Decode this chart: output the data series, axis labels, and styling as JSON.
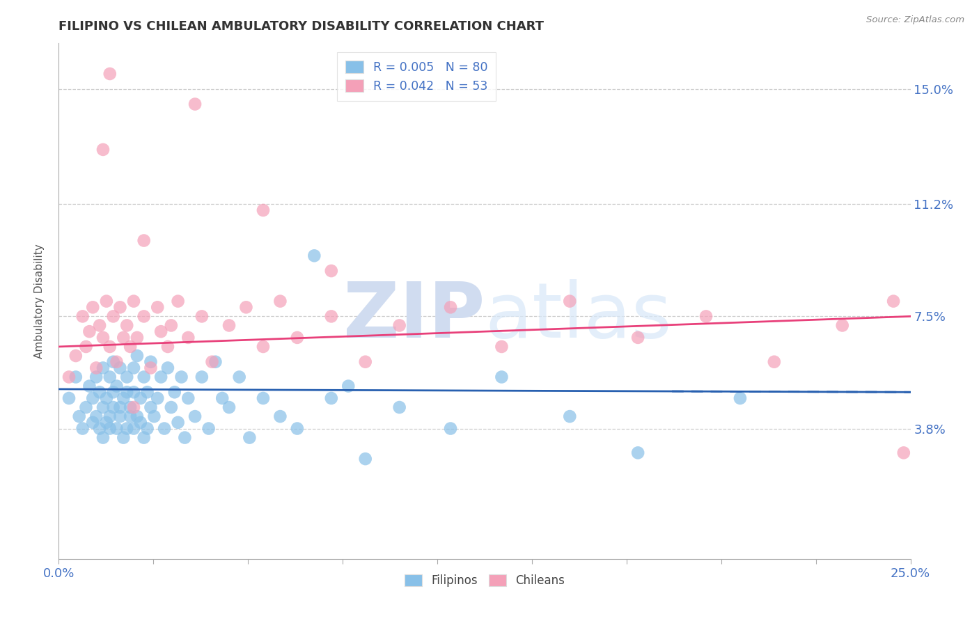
{
  "title": "FILIPINO VS CHILEAN AMBULATORY DISABILITY CORRELATION CHART",
  "source": "Source: ZipAtlas.com",
  "ylabel": "Ambulatory Disability",
  "x_min": 0.0,
  "x_max": 0.25,
  "y_min": -0.005,
  "y_max": 0.165,
  "y_ticks": [
    0.038,
    0.075,
    0.112,
    0.15
  ],
  "y_tick_labels": [
    "3.8%",
    "7.5%",
    "11.2%",
    "15.0%"
  ],
  "legend_R_filipino": "R = 0.005",
  "legend_N_filipino": "N = 80",
  "legend_R_chilean": "R = 0.042",
  "legend_N_chilean": "N = 53",
  "color_filipino": "#88C0E8",
  "color_chilean": "#F4A0B8",
  "color_trendline_filipino": "#2860B0",
  "color_trendline_chilean": "#E8407A",
  "color_axis_labels": "#4472C4",
  "filipino_x": [
    0.003,
    0.005,
    0.006,
    0.007,
    0.008,
    0.009,
    0.01,
    0.01,
    0.011,
    0.011,
    0.012,
    0.012,
    0.013,
    0.013,
    0.013,
    0.014,
    0.014,
    0.015,
    0.015,
    0.015,
    0.016,
    0.016,
    0.016,
    0.017,
    0.017,
    0.018,
    0.018,
    0.018,
    0.019,
    0.019,
    0.02,
    0.02,
    0.02,
    0.021,
    0.021,
    0.022,
    0.022,
    0.022,
    0.023,
    0.023,
    0.024,
    0.024,
    0.025,
    0.025,
    0.026,
    0.026,
    0.027,
    0.027,
    0.028,
    0.029,
    0.03,
    0.031,
    0.032,
    0.033,
    0.034,
    0.035,
    0.036,
    0.037,
    0.038,
    0.04,
    0.042,
    0.044,
    0.046,
    0.048,
    0.05,
    0.053,
    0.056,
    0.06,
    0.065,
    0.07,
    0.075,
    0.08,
    0.085,
    0.09,
    0.1,
    0.115,
    0.13,
    0.15,
    0.17,
    0.2
  ],
  "filipino_y": [
    0.048,
    0.055,
    0.042,
    0.038,
    0.045,
    0.052,
    0.048,
    0.04,
    0.055,
    0.042,
    0.05,
    0.038,
    0.045,
    0.058,
    0.035,
    0.048,
    0.04,
    0.055,
    0.042,
    0.038,
    0.05,
    0.045,
    0.06,
    0.038,
    0.052,
    0.045,
    0.042,
    0.058,
    0.048,
    0.035,
    0.05,
    0.038,
    0.055,
    0.045,
    0.042,
    0.05,
    0.038,
    0.058,
    0.042,
    0.062,
    0.048,
    0.04,
    0.055,
    0.035,
    0.05,
    0.038,
    0.06,
    0.045,
    0.042,
    0.048,
    0.055,
    0.038,
    0.058,
    0.045,
    0.05,
    0.04,
    0.055,
    0.035,
    0.048,
    0.042,
    0.055,
    0.038,
    0.06,
    0.048,
    0.045,
    0.055,
    0.035,
    0.048,
    0.042,
    0.038,
    0.095,
    0.048,
    0.052,
    0.028,
    0.045,
    0.038,
    0.055,
    0.042,
    0.03,
    0.048
  ],
  "chilean_x": [
    0.003,
    0.005,
    0.007,
    0.008,
    0.009,
    0.01,
    0.011,
    0.012,
    0.013,
    0.014,
    0.015,
    0.016,
    0.017,
    0.018,
    0.019,
    0.02,
    0.021,
    0.022,
    0.023,
    0.025,
    0.027,
    0.029,
    0.03,
    0.032,
    0.033,
    0.035,
    0.038,
    0.042,
    0.045,
    0.05,
    0.055,
    0.06,
    0.065,
    0.07,
    0.08,
    0.09,
    0.1,
    0.115,
    0.13,
    0.15,
    0.17,
    0.19,
    0.21,
    0.23,
    0.245,
    0.248,
    0.013,
    0.025,
    0.04,
    0.06,
    0.08,
    0.015,
    0.022
  ],
  "chilean_y": [
    0.055,
    0.062,
    0.075,
    0.065,
    0.07,
    0.078,
    0.058,
    0.072,
    0.068,
    0.08,
    0.065,
    0.075,
    0.06,
    0.078,
    0.068,
    0.072,
    0.065,
    0.08,
    0.068,
    0.075,
    0.058,
    0.078,
    0.07,
    0.065,
    0.072,
    0.08,
    0.068,
    0.075,
    0.06,
    0.072,
    0.078,
    0.065,
    0.08,
    0.068,
    0.075,
    0.06,
    0.072,
    0.078,
    0.065,
    0.08,
    0.068,
    0.075,
    0.06,
    0.072,
    0.08,
    0.03,
    0.13,
    0.1,
    0.145,
    0.11,
    0.09,
    0.155,
    0.045
  ]
}
